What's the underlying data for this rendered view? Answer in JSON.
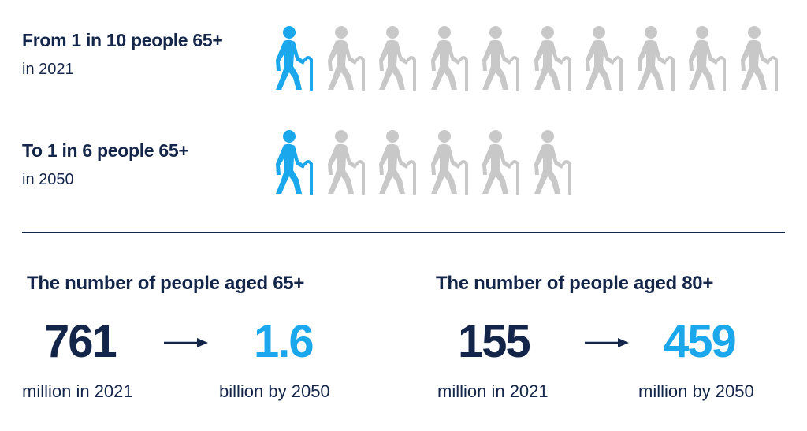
{
  "colors": {
    "navy": "#14254a",
    "accent": "#1aa7ec",
    "grey_icon": "#c8c8c8"
  },
  "row_2021": {
    "headline": "From 1 in 10 people 65+",
    "subline": "in 2021",
    "total_people": 10,
    "highlighted_people": 1,
    "icon": "elderly-person-with-cane-icon"
  },
  "row_2050": {
    "headline": "To 1 in 6 people 65+",
    "subline": "in 2050",
    "total_people": 6,
    "highlighted_people": 1,
    "icon": "elderly-person-with-cane-icon"
  },
  "stats": {
    "aged65": {
      "title": "The number of people aged 65+",
      "from_value": "761",
      "from_caption": "million in 2021",
      "to_value": "1.6",
      "to_caption": "billion by 2050"
    },
    "aged80": {
      "title": "The number of people aged 80+",
      "from_value": "155",
      "from_caption": "million in 2021",
      "to_value": "459",
      "to_caption": "million by 2050"
    }
  }
}
